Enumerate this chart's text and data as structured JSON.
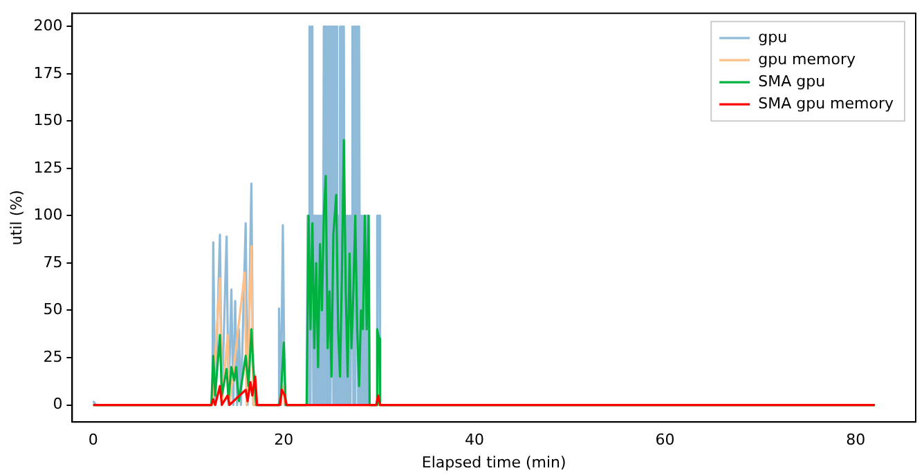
{
  "chart_data": {
    "type": "line",
    "xlabel": "Elapsed time (min)",
    "ylabel": "util (%)",
    "xlim": [
      -2.2,
      86.3
    ],
    "ylim": [
      -9,
      207
    ],
    "xticks": [
      0,
      20,
      40,
      60,
      80
    ],
    "yticks": [
      0,
      25,
      50,
      75,
      100,
      125,
      150,
      175,
      200
    ],
    "grid": false,
    "legend": "top right",
    "marker": "none",
    "line_style": "solid",
    "series": [
      {
        "name": "gpu",
        "color": "#8fbbd9",
        "x": [
          0,
          0.3,
          12.5,
          12.6,
          12.8,
          13.3,
          13.5,
          14.0,
          14.2,
          14.5,
          14.7,
          14.9,
          15.1,
          15.3,
          15.5,
          16.0,
          16.2,
          16.6,
          16.8,
          19.4,
          19.5,
          19.7,
          19.9,
          20.1,
          22.4,
          22.5,
          22.6,
          22.7,
          22.8,
          22.9,
          23.0,
          23.1,
          23.2,
          23.3,
          23.4,
          23.5,
          23.6,
          23.7,
          23.8,
          23.9,
          24.0,
          24.1,
          24.2,
          24.3,
          24.4,
          24.5,
          24.6,
          24.7,
          24.8,
          24.9,
          25.0,
          25.1,
          25.2,
          25.3,
          25.4,
          25.5,
          25.6,
          25.7,
          25.8,
          25.9,
          26.0,
          26.1,
          26.2,
          26.3,
          26.4,
          26.5,
          26.6,
          26.7,
          26.8,
          26.9,
          27.0,
          27.1,
          27.2,
          27.3,
          27.4,
          27.5,
          27.6,
          27.7,
          27.8,
          27.9,
          28.0,
          28.1,
          28.2,
          28.3,
          28.4,
          28.5,
          28.6,
          28.7,
          28.8,
          28.9,
          29.0,
          29.7,
          29.8,
          30.0,
          30.1,
          82
        ],
        "values": [
          2,
          0,
          0,
          86,
          0,
          90,
          0,
          89,
          0,
          61,
          0,
          55,
          0,
          40,
          0,
          96,
          0,
          117,
          0,
          0,
          51,
          0,
          95,
          0,
          0,
          100,
          0,
          200,
          0,
          200,
          100,
          0,
          100,
          0,
          100,
          0,
          100,
          0,
          100,
          0,
          100,
          0,
          200,
          0,
          200,
          0,
          200,
          0,
          200,
          0,
          100,
          200,
          0,
          200,
          0,
          200,
          0,
          100,
          0,
          200,
          0,
          200,
          0,
          200,
          0,
          100,
          0,
          100,
          0,
          100,
          0,
          100,
          200,
          0,
          200,
          0,
          100,
          200,
          0,
          200,
          0,
          100,
          0,
          100,
          0,
          100,
          0,
          100,
          0,
          100,
          0,
          0,
          100,
          100,
          0,
          0
        ]
      },
      {
        "name": "gpu memory",
        "color": "#ffbf86",
        "x": [
          0,
          12.5,
          13.3,
          13.5,
          14.1,
          14.3,
          15.9,
          16.1,
          16.6,
          16.8,
          19.6,
          19.9,
          20.1,
          82
        ],
        "values": [
          0,
          0,
          67,
          0,
          37,
          0,
          70,
          0,
          84,
          0,
          0,
          10,
          0,
          0
        ]
      },
      {
        "name": "SMA gpu",
        "color": "#00b140",
        "x": [
          0,
          12.4,
          12.6,
          12.8,
          13.3,
          13.5,
          14.0,
          14.2,
          14.5,
          14.8,
          15.0,
          15.3,
          16.0,
          16.3,
          16.6,
          16.8,
          17.1,
          19.5,
          19.7,
          20.0,
          20.2,
          22.4,
          22.6,
          22.8,
          23.0,
          23.2,
          23.4,
          23.6,
          23.8,
          24.0,
          24.2,
          24.4,
          24.6,
          24.8,
          25.0,
          25.2,
          25.5,
          25.7,
          25.9,
          26.1,
          26.3,
          26.5,
          26.7,
          26.9,
          27.1,
          27.3,
          27.5,
          27.7,
          27.9,
          28.1,
          28.3,
          28.5,
          28.7,
          28.9,
          29.0,
          29.7,
          29.8,
          30.0,
          30.1,
          82
        ],
        "values": [
          0,
          0,
          26,
          5,
          37,
          5,
          19,
          3,
          20,
          13,
          20,
          2,
          26,
          10,
          40,
          20,
          0,
          0,
          5,
          33,
          0,
          0,
          100,
          40,
          96,
          30,
          75,
          20,
          85,
          50,
          100,
          121,
          30,
          60,
          15,
          90,
          111,
          40,
          15,
          70,
          140,
          60,
          15,
          80,
          30,
          60,
          100,
          40,
          10,
          50,
          40,
          100,
          40,
          100,
          0,
          0,
          40,
          35,
          0,
          0
        ]
      },
      {
        "name": "SMA gpu memory",
        "color": "#ff0000",
        "x": [
          0,
          12.4,
          12.6,
          12.8,
          13.3,
          13.5,
          14.1,
          14.3,
          16.0,
          16.2,
          16.5,
          16.7,
          17.0,
          17.2,
          19.6,
          19.8,
          20.1,
          20.3,
          29.7,
          29.9,
          30.1,
          82
        ],
        "values": [
          0,
          0,
          3,
          0,
          10,
          0,
          5,
          0,
          8,
          2,
          12,
          5,
          15,
          0,
          0,
          8,
          5,
          0,
          0,
          5,
          0,
          0
        ]
      }
    ]
  }
}
